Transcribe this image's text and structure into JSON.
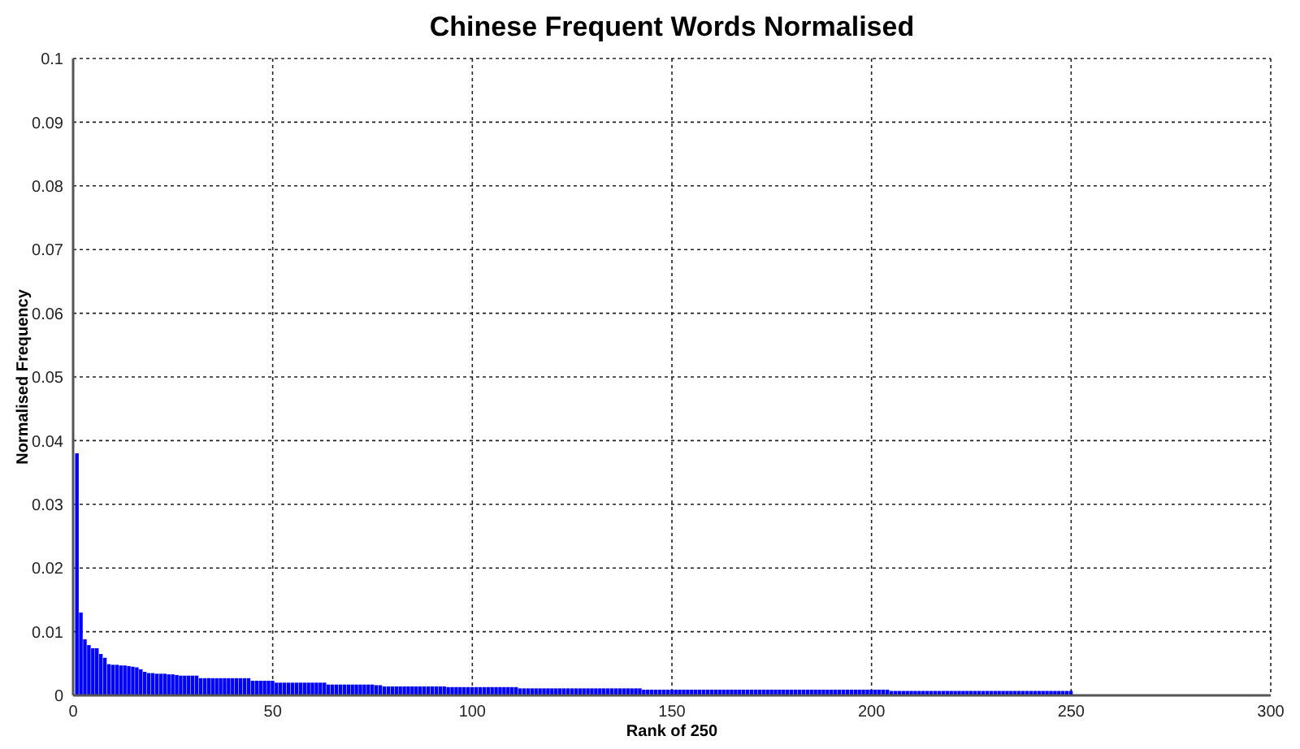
{
  "chart_data": {
    "type": "bar",
    "title": "Chinese Frequent Words Normalised",
    "xlabel": "Rank of 250",
    "ylabel": "Normalised Frequency",
    "color": "#0000ff",
    "x": [
      1,
      2,
      3,
      4,
      5,
      6,
      7,
      8,
      9,
      10,
      11,
      12,
      13,
      14,
      15,
      16,
      17,
      18,
      19,
      20,
      21,
      22,
      23,
      24,
      25,
      26,
      27,
      28,
      29,
      30,
      31,
      32,
      33,
      34,
      35,
      36,
      37,
      38,
      39,
      40,
      41,
      42,
      43,
      44,
      45,
      46,
      47,
      48,
      49,
      50,
      51,
      52,
      53,
      54,
      55,
      56,
      57,
      58,
      59,
      60,
      61,
      62,
      63,
      64,
      65,
      66,
      67,
      68,
      69,
      70,
      71,
      72,
      73,
      74,
      75,
      76,
      77,
      78,
      79,
      80,
      81,
      82,
      83,
      84,
      85,
      86,
      87,
      88,
      89,
      90,
      91,
      92,
      93,
      94,
      95,
      96,
      97,
      98,
      99,
      100,
      101,
      102,
      103,
      104,
      105,
      106,
      107,
      108,
      109,
      110,
      111,
      112,
      113,
      114,
      115,
      116,
      117,
      118,
      119,
      120,
      121,
      122,
      123,
      124,
      125,
      126,
      127,
      128,
      129,
      130,
      131,
      132,
      133,
      134,
      135,
      136,
      137,
      138,
      139,
      140,
      141,
      142,
      143,
      144,
      145,
      146,
      147,
      148,
      149,
      150,
      151,
      152,
      153,
      154,
      155,
      156,
      157,
      158,
      159,
      160,
      161,
      162,
      163,
      164,
      165,
      166,
      167,
      168,
      169,
      170,
      171,
      172,
      173,
      174,
      175,
      176,
      177,
      178,
      179,
      180,
      181,
      182,
      183,
      184,
      185,
      186,
      187,
      188,
      189,
      190,
      191,
      192,
      193,
      194,
      195,
      196,
      197,
      198,
      199,
      200,
      201,
      202,
      203,
      204,
      205,
      206,
      207,
      208,
      209,
      210,
      211,
      212,
      213,
      214,
      215,
      216,
      217,
      218,
      219,
      220,
      221,
      222,
      223,
      224,
      225,
      226,
      227,
      228,
      229,
      230,
      231,
      232,
      233,
      234,
      235,
      236,
      237,
      238,
      239,
      240,
      241,
      242,
      243,
      244,
      245,
      246,
      247,
      248,
      249,
      250
    ],
    "values": [
      0.038,
      0.013,
      0.0088,
      0.0079,
      0.0074,
      0.0074,
      0.0065,
      0.0059,
      0.0049,
      0.0048,
      0.0048,
      0.0047,
      0.0047,
      0.0046,
      0.0045,
      0.0044,
      0.0041,
      0.0037,
      0.0035,
      0.0035,
      0.0034,
      0.0034,
      0.0034,
      0.0033,
      0.0033,
      0.0032,
      0.0031,
      0.0031,
      0.0031,
      0.0031,
      0.0031,
      0.0027,
      0.0027,
      0.0027,
      0.0027,
      0.0027,
      0.0027,
      0.0027,
      0.0027,
      0.0027,
      0.0027,
      0.0027,
      0.0027,
      0.0027,
      0.0023,
      0.0023,
      0.0023,
      0.0023,
      0.0023,
      0.0023,
      0.002,
      0.002,
      0.002,
      0.002,
      0.002,
      0.002,
      0.002,
      0.002,
      0.002,
      0.002,
      0.002,
      0.002,
      0.002,
      0.0017,
      0.0017,
      0.0017,
      0.0017,
      0.0017,
      0.0017,
      0.0017,
      0.0017,
      0.0017,
      0.0017,
      0.0017,
      0.0017,
      0.0016,
      0.0016,
      0.0014,
      0.0014,
      0.0014,
      0.0014,
      0.0014,
      0.0014,
      0.0014,
      0.0014,
      0.0014,
      0.0014,
      0.0014,
      0.0014,
      0.0014,
      0.0014,
      0.0014,
      0.0014,
      0.0013,
      0.0013,
      0.0013,
      0.0013,
      0.0013,
      0.0013,
      0.0013,
      0.0013,
      0.0013,
      0.0013,
      0.0013,
      0.0013,
      0.0013,
      0.0013,
      0.0013,
      0.0013,
      0.0013,
      0.0013,
      0.0011,
      0.0011,
      0.0011,
      0.0011,
      0.0011,
      0.0011,
      0.0011,
      0.0011,
      0.0011,
      0.0011,
      0.0011,
      0.0011,
      0.0011,
      0.0011,
      0.0011,
      0.0011,
      0.0011,
      0.0011,
      0.0011,
      0.0011,
      0.0011,
      0.0011,
      0.0011,
      0.0011,
      0.0011,
      0.0011,
      0.0011,
      0.0011,
      0.0011,
      0.0011,
      0.0011,
      0.0009,
      0.0009,
      0.0009,
      0.0009,
      0.0009,
      0.0009,
      0.0009,
      0.0009,
      0.0009,
      0.0009,
      0.0009,
      0.0009,
      0.0009,
      0.0009,
      0.0009,
      0.0009,
      0.0009,
      0.0009,
      0.0009,
      0.0009,
      0.0009,
      0.0009,
      0.0009,
      0.0009,
      0.0009,
      0.0009,
      0.0009,
      0.0009,
      0.0009,
      0.0009,
      0.0009,
      0.0009,
      0.0009,
      0.0009,
      0.0009,
      0.0009,
      0.0009,
      0.0009,
      0.0009,
      0.0009,
      0.0009,
      0.0009,
      0.0009,
      0.0009,
      0.0009,
      0.0009,
      0.0009,
      0.0009,
      0.0009,
      0.0009,
      0.0009,
      0.0009,
      0.0009,
      0.0009,
      0.0009,
      0.0009,
      0.0009,
      0.0009,
      0.0009,
      0.0009,
      0.0009,
      0.0009,
      0.0007,
      0.0007,
      0.0007,
      0.0007,
      0.0007,
      0.0007,
      0.0007,
      0.0007,
      0.0007,
      0.0007,
      0.0007,
      0.0007,
      0.0007,
      0.0007,
      0.0007,
      0.0007,
      0.0007,
      0.0007,
      0.0007,
      0.0007,
      0.0007,
      0.0007,
      0.0007,
      0.0007,
      0.0007,
      0.0007,
      0.0007,
      0.0007,
      0.0007,
      0.0007,
      0.0007,
      0.0007,
      0.0007,
      0.0007,
      0.0007,
      0.0007,
      0.0007,
      0.0007,
      0.0007,
      0.0007,
      0.0007,
      0.0007,
      0.0007,
      0.0007,
      0.0007,
      0.0007
    ],
    "xlim": [
      0,
      300
    ],
    "xticks": [
      0,
      50,
      100,
      150,
      200,
      250,
      300
    ],
    "ylim": [
      0,
      0.1
    ],
    "yticks": [
      0,
      0.01,
      0.02,
      0.03,
      0.04,
      0.05,
      0.06,
      0.07,
      0.08,
      0.09,
      0.1
    ],
    "grid": true
  }
}
